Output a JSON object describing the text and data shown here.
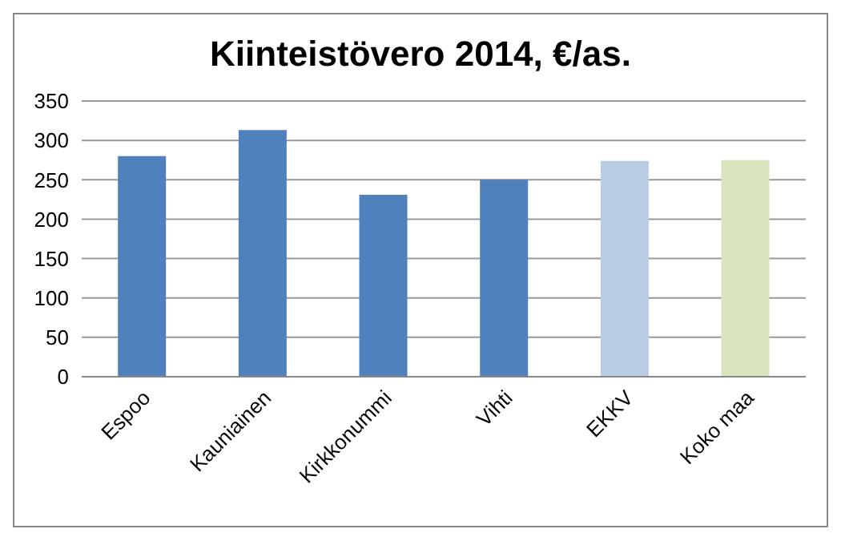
{
  "chart_data": {
    "type": "bar",
    "title": "Kiinteistövero 2014, €/as.",
    "categories": [
      "Espoo",
      "Kauniainen",
      "Kirkkonummi",
      "Vihti",
      "EKKV",
      "Koko maa"
    ],
    "values": [
      280,
      313,
      231,
      250,
      274,
      275
    ],
    "colors": [
      "#4f81bd",
      "#4f81bd",
      "#4f81bd",
      "#4f81bd",
      "#b9cde5",
      "#d7e4bd"
    ],
    "ylim": [
      0,
      350
    ],
    "yticks": [
      0,
      50,
      100,
      150,
      200,
      250,
      300,
      350
    ],
    "grid": "y"
  }
}
